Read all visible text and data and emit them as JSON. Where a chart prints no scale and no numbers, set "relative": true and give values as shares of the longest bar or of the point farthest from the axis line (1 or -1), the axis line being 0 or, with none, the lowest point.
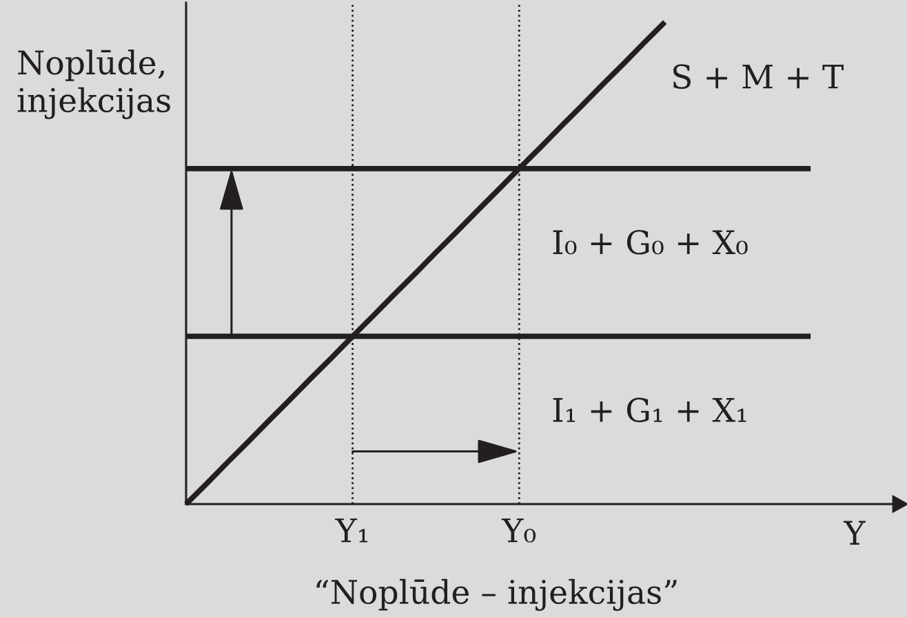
{
  "chart_data": {
    "type": "line",
    "relative": true,
    "categories": [
      null,
      null,
      null,
      null,
      null,
      null,
      null,
      null,
      "Y₁",
      null,
      null,
      null,
      null,
      null,
      null,
      null,
      "Y₀",
      null,
      null,
      null,
      null,
      null,
      null,
      null,
      null,
      null,
      null,
      null,
      null,
      null,
      null
    ],
    "series": [
      {
        "name": "S + M + T",
        "color": "#231f20",
        "values": [
          0,
          0.043,
          0.087,
          0.13,
          0.174,
          0.217,
          0.261,
          0.304,
          0.348,
          0.391,
          0.435,
          0.478,
          0.522,
          0.565,
          0.609,
          0.652,
          0.696,
          0.739,
          0.783,
          0.826,
          0.87,
          0.913,
          0.957,
          1,
          null,
          null,
          null,
          null,
          null,
          null,
          null
        ]
      },
      {
        "name": "I₀ + G₀ + X₀",
        "color": "#231f20",
        "values": [
          0.696,
          0.696,
          0.696,
          0.696,
          0.696,
          0.696,
          0.696,
          0.696,
          0.696,
          0.696,
          0.696,
          0.696,
          0.696,
          0.696,
          0.696,
          0.696,
          0.696,
          0.696,
          0.696,
          0.696,
          0.696,
          0.696,
          0.696,
          0.696,
          0.696,
          0.696,
          0.696,
          0.696,
          0.696,
          0.696,
          0.696
        ]
      },
      {
        "name": "I₁ + G₁ + X₁",
        "color": "#231f20",
        "values": [
          0.348,
          0.348,
          0.348,
          0.348,
          0.348,
          0.348,
          0.348,
          0.348,
          0.348,
          0.348,
          0.348,
          0.348,
          0.348,
          0.348,
          0.348,
          0.348,
          0.348,
          0.348,
          0.348,
          0.348,
          0.348,
          0.348,
          0.348,
          0.348,
          0.348,
          0.348,
          0.348,
          0.348,
          0.348,
          0.348,
          0.348
        ]
      }
    ],
    "xlabel": "Y",
    "ylabel": "Noplūde,\ninjekcijas",
    "ref_lines": [
      {
        "axis": "x",
        "value": "Y₁",
        "line_style": "dotted",
        "color": "#231f20"
      },
      {
        "axis": "x",
        "value": "Y₀",
        "line_style": "dotted",
        "color": "#231f20"
      }
    ],
    "annotations": [
      "“Noplūde – injekcijas”"
    ]
  }
}
